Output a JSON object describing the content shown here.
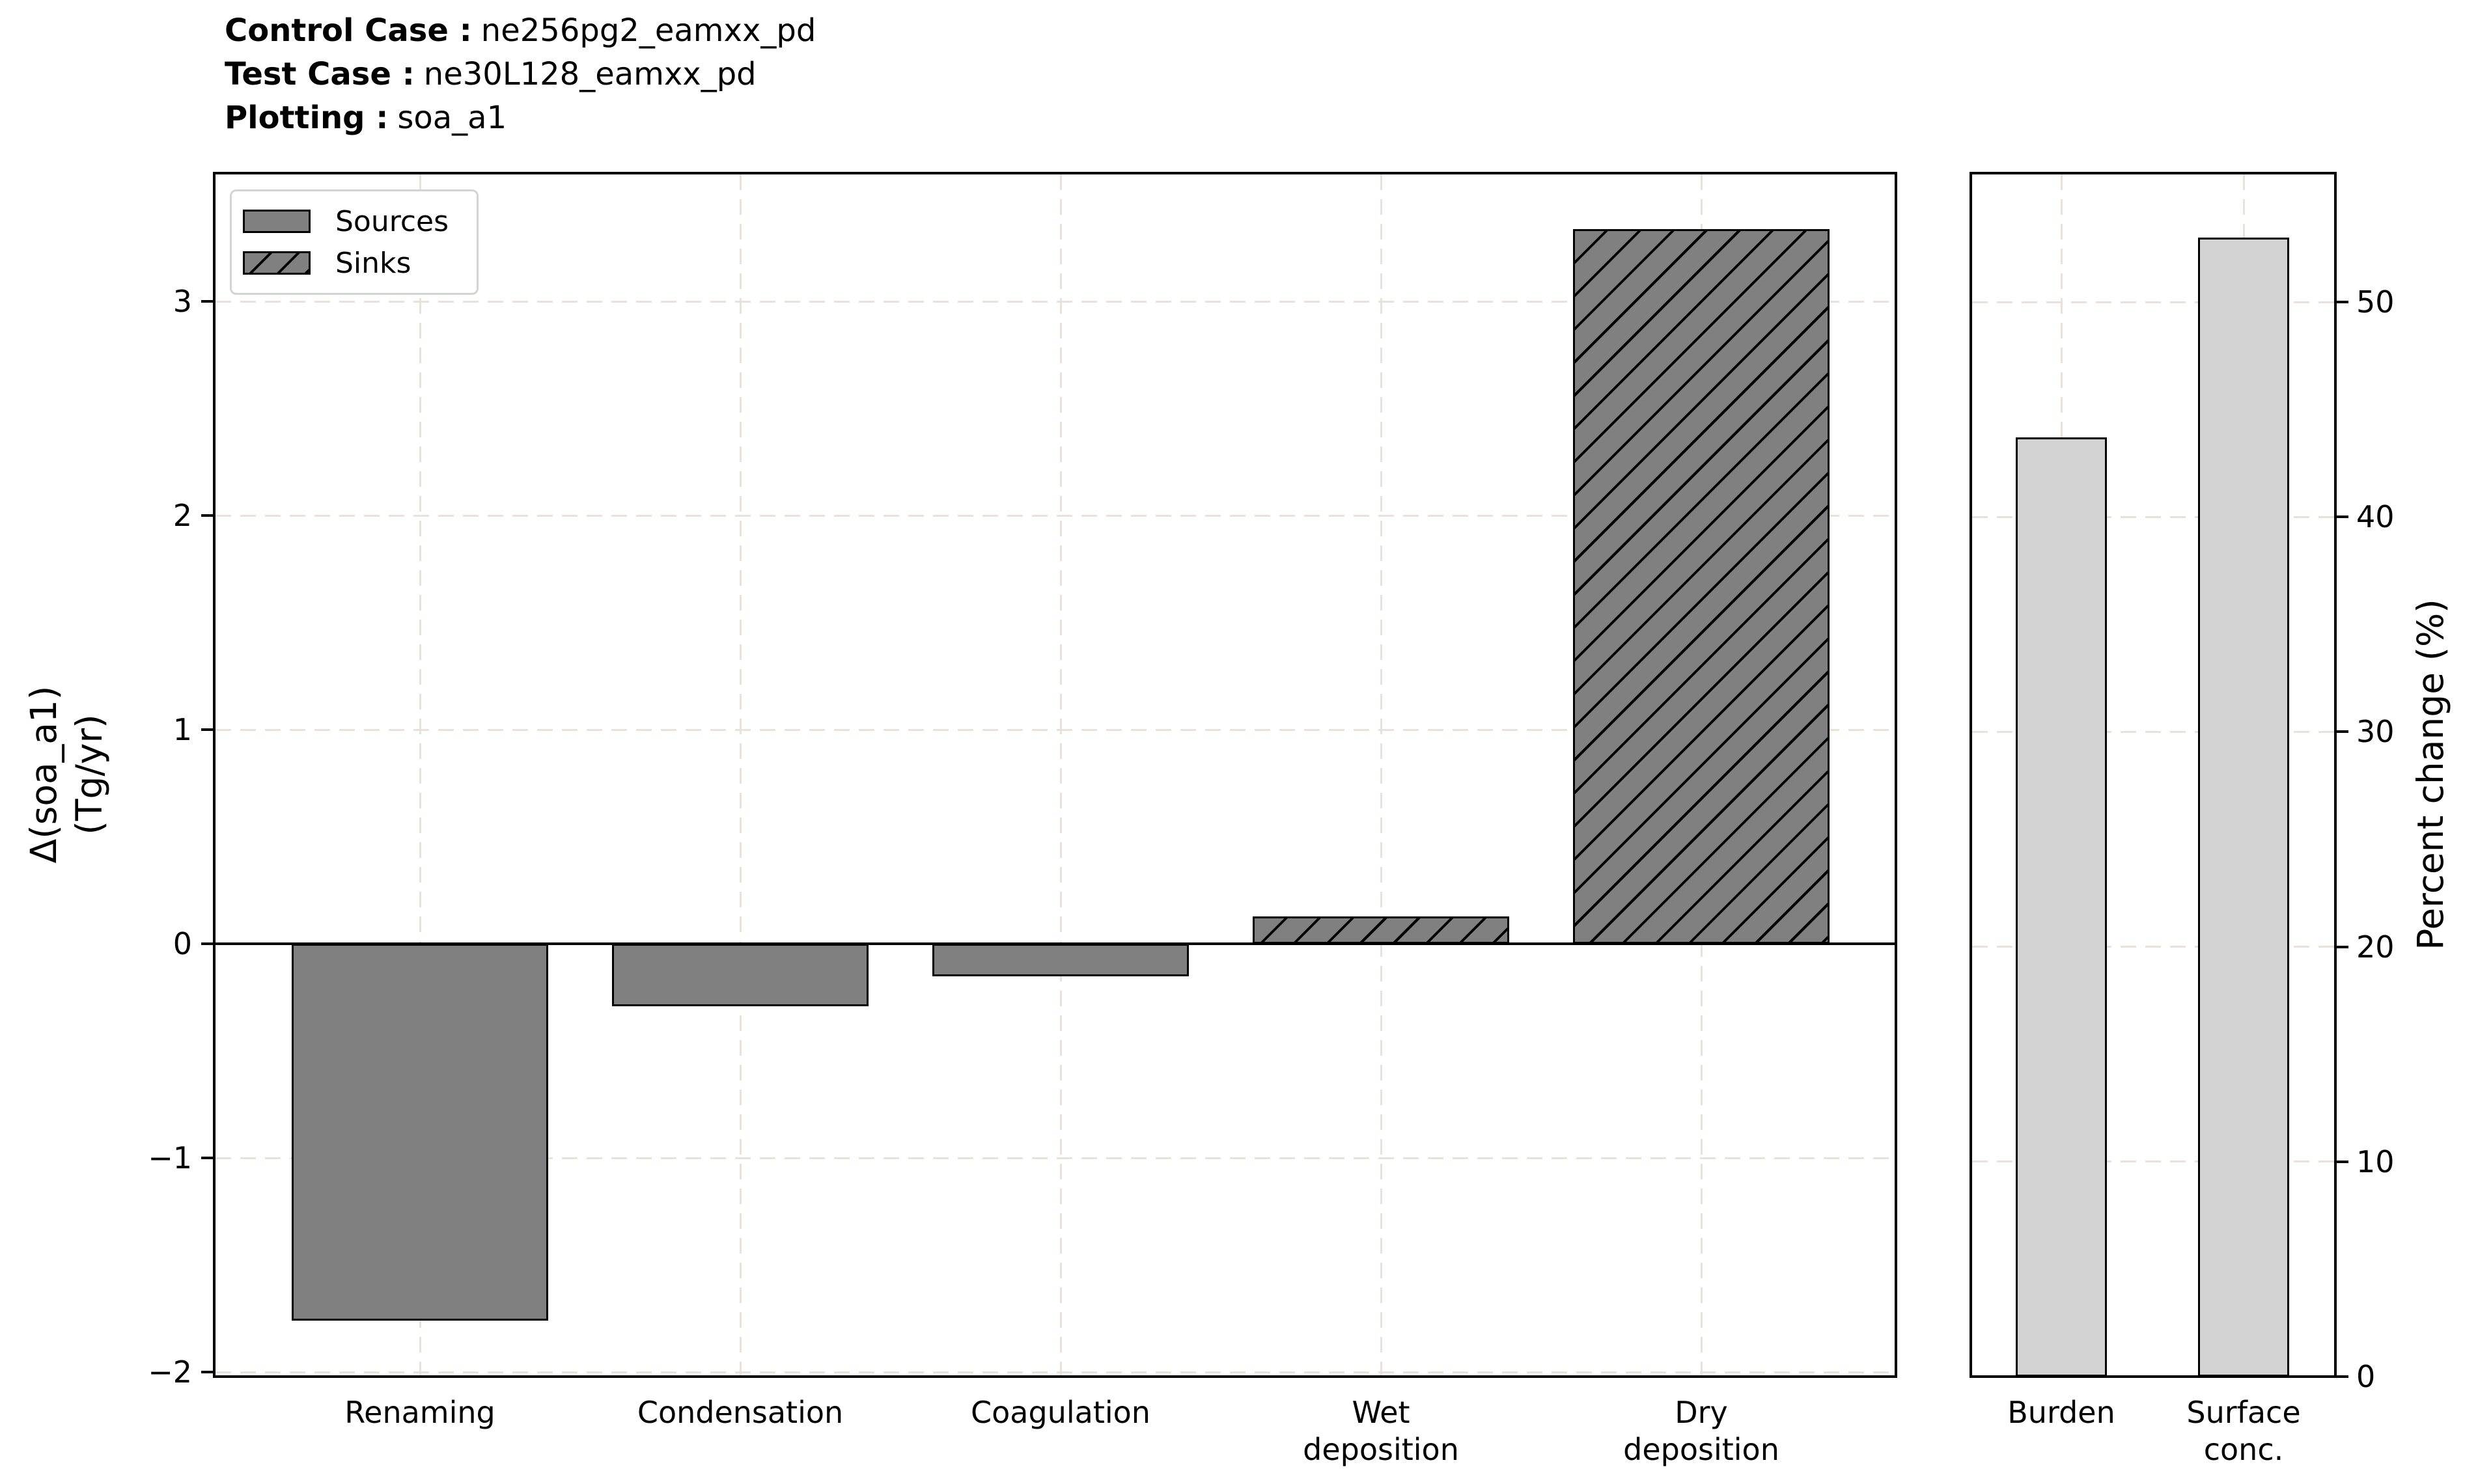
{
  "header": {
    "lines": [
      {
        "label": "Control Case :",
        "value": "ne256pg2_eamxx_pd"
      },
      {
        "label": "Test Case :",
        "value": "ne30L128_eamxx_pd"
      },
      {
        "label": "Plotting :",
        "value": "soa_a1"
      }
    ]
  },
  "colors": {
    "bar_gray": "#808080",
    "bar_light": "#d3d3d3",
    "edge": "#000000",
    "gridline": "#e9e2da",
    "legend_border": "#d4d4d4",
    "background": "#ffffff"
  },
  "chart_data": [
    {
      "type": "bar",
      "panel": "main",
      "categories": [
        "Renaming",
        "Condensation",
        "Coagulation",
        "Wet\ndeposition",
        "Dry\ndeposition"
      ],
      "values": [
        -1.76,
        -0.29,
        -0.15,
        0.13,
        3.34
      ],
      "bar_roles": [
        "source",
        "source",
        "source",
        "sink",
        "sink"
      ],
      "ylabel": "Δ(soa_a1)\n(Tg/yr)",
      "yticks": [
        -2,
        -1,
        0,
        1,
        2,
        3
      ],
      "ylim": [
        -2.02,
        3.6
      ],
      "grid": true,
      "zero_line": true,
      "legend": {
        "position": "upper left",
        "entries": [
          {
            "label": "Sources",
            "hatch": false
          },
          {
            "label": "Sinks",
            "hatch": true
          }
        ]
      }
    },
    {
      "type": "bar",
      "panel": "right",
      "categories": [
        "Burden",
        "Surface\nconc."
      ],
      "values": [
        43.7,
        53.0
      ],
      "ylabel": "Percent change (%)",
      "yticks": [
        0,
        10,
        20,
        30,
        40,
        50
      ],
      "ylim": [
        0,
        56
      ],
      "grid": true,
      "zero_line": false
    }
  ]
}
